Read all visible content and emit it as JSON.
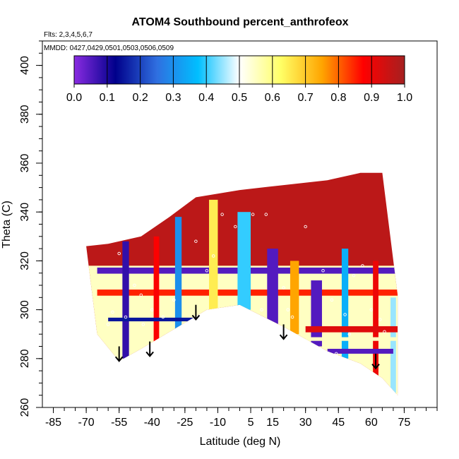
{
  "chart_data": {
    "type": "heatmap",
    "title": "ATOM4 Southbound percent_anthrofeox",
    "flights_label": "Flts: 2,3,4,5,6,7",
    "dates_label": "MMDD: 0427,0429,0501,0503,0506,0509",
    "xlabel": "Latitude (deg N)",
    "ylabel": "Theta (C)",
    "xlim": [
      -90,
      90
    ],
    "ylim": [
      260,
      410
    ],
    "x_ticks": [
      -85,
      -70,
      -55,
      -40,
      -25,
      -10,
      5,
      15,
      30,
      45,
      60,
      75
    ],
    "x_tick_labels": [
      "-85",
      "-70",
      "-55",
      "-40",
      "-25",
      "-10",
      "5",
      "15",
      "30",
      "45",
      "60",
      "75"
    ],
    "y_ticks": [
      260,
      280,
      300,
      320,
      340,
      360,
      380,
      400
    ],
    "y_tick_labels": [
      "260",
      "280",
      "300",
      "320",
      "340",
      "360",
      "380",
      "400"
    ],
    "colorbar": {
      "range": [
        0,
        1
      ],
      "ticks": [
        0.0,
        0.1,
        0.2,
        0.3,
        0.4,
        0.5,
        0.6,
        0.7,
        0.8,
        0.9,
        1.0
      ],
      "tick_labels": [
        "0.0",
        "0.1",
        "0.2",
        "0.3",
        "0.4",
        "0.5",
        "0.6",
        "0.7",
        "0.8",
        "0.9",
        "1.0"
      ],
      "colors": [
        "#8a2be2",
        "#00008b",
        "#2f6fe0",
        "#00bfff",
        "#ffffff",
        "#ffff66",
        "#ffa500",
        "#ff0000",
        "#a52020"
      ]
    },
    "arrows": [
      {
        "lat": -55,
        "theta": 285
      },
      {
        "lat": -41,
        "theta": 287
      },
      {
        "lat": -20,
        "theta": 302
      },
      {
        "lat": 20,
        "theta": 294
      },
      {
        "lat": 62,
        "theta": 282
      }
    ],
    "data_region": {
      "top_boundary": [
        [
          -70,
          326
        ],
        [
          -60,
          327
        ],
        [
          -45,
          330
        ],
        [
          -32,
          338
        ],
        [
          -20,
          346
        ],
        [
          0,
          349
        ],
        [
          20,
          351
        ],
        [
          40,
          353
        ],
        [
          55,
          356
        ],
        [
          65,
          356
        ],
        [
          72,
          306
        ]
      ],
      "bottom_boundary": [
        [
          72,
          265
        ],
        [
          65,
          272
        ],
        [
          55,
          278
        ],
        [
          40,
          283
        ],
        [
          20,
          293
        ],
        [
          0,
          302
        ],
        [
          -15,
          300
        ],
        [
          -30,
          292
        ],
        [
          -45,
          284
        ],
        [
          -55,
          279
        ],
        [
          -65,
          290
        ],
        [
          -70,
          326
        ]
      ]
    },
    "contour_features": [
      {
        "shape": "hline",
        "lat": [
          -65,
          72
        ],
        "theta": 316,
        "value": 0.05,
        "width": 2.5
      },
      {
        "shape": "hline",
        "lat": [
          -65,
          72
        ],
        "theta": 307,
        "value": 0.85,
        "width": 2.5
      },
      {
        "shape": "vline",
        "lat": -52,
        "theta": [
          280,
          328
        ],
        "value": 0.08,
        "width": 3
      },
      {
        "shape": "vline",
        "lat": -38,
        "theta": [
          285,
          330
        ],
        "value": 0.88,
        "width": 2.5
      },
      {
        "shape": "vline",
        "lat": -28,
        "theta": [
          290,
          338
        ],
        "value": 0.3,
        "width": 3
      },
      {
        "shape": "vline",
        "lat": -12,
        "theta": [
          298,
          345
        ],
        "value": 0.65,
        "width": 4
      },
      {
        "shape": "vline",
        "lat": 2,
        "theta": [
          300,
          340
        ],
        "value": 0.4,
        "width": 6
      },
      {
        "shape": "vline",
        "lat": 15,
        "theta": [
          292,
          325
        ],
        "value": 0.05,
        "width": 5
      },
      {
        "shape": "vline",
        "lat": 25,
        "theta": [
          290,
          320
        ],
        "value": 0.75,
        "width": 4
      },
      {
        "shape": "vline",
        "lat": 35,
        "theta": [
          285,
          312
        ],
        "value": 0.05,
        "width": 5
      },
      {
        "shape": "vline",
        "lat": 48,
        "theta": [
          280,
          325
        ],
        "value": 0.35,
        "width": 3
      },
      {
        "shape": "vline",
        "lat": 62,
        "theta": [
          272,
          320
        ],
        "value": 0.9,
        "width": 2.5
      },
      {
        "shape": "vline",
        "lat": 70,
        "theta": [
          266,
          305
        ],
        "value": 0.45,
        "width": 2.5
      },
      {
        "shape": "hline",
        "lat": [
          -60,
          -20
        ],
        "theta": 296,
        "value": 0.15,
        "width": 1.5
      },
      {
        "shape": "hline",
        "lat": [
          30,
          72
        ],
        "theta": 292,
        "value": 0.92,
        "width": 2.5
      },
      {
        "shape": "hline",
        "lat": [
          30,
          72
        ],
        "theta": 288,
        "value": 0.55,
        "width": 1.5
      },
      {
        "shape": "hline",
        "lat": [
          40,
          70
        ],
        "theta": 283,
        "value": 0.05,
        "width": 2
      }
    ],
    "observations": [
      [
        -55,
        323
      ],
      [
        -48,
        310
      ],
      [
        -45,
        306
      ],
      [
        -52,
        297
      ],
      [
        -44,
        294
      ],
      [
        -40,
        300
      ],
      [
        -30,
        304
      ],
      [
        -20,
        328
      ],
      [
        -15,
        316
      ],
      [
        -8,
        339
      ],
      [
        -2,
        334
      ],
      [
        6,
        339
      ],
      [
        12,
        339
      ],
      [
        -12,
        322
      ],
      [
        20,
        309
      ],
      [
        22,
        300
      ],
      [
        24,
        297
      ],
      [
        30,
        334
      ],
      [
        38,
        316
      ],
      [
        42,
        304
      ],
      [
        48,
        298
      ],
      [
        52,
        314
      ],
      [
        56,
        318
      ],
      [
        50,
        290
      ],
      [
        44,
        282
      ],
      [
        60,
        300
      ],
      [
        64,
        296
      ],
      [
        66,
        291
      ],
      [
        70,
        266
      ],
      [
        72,
        265
      ],
      [
        -60,
        294
      ],
      [
        -58,
        299
      ],
      [
        -35,
        297
      ],
      [
        10,
        300
      ]
    ]
  }
}
